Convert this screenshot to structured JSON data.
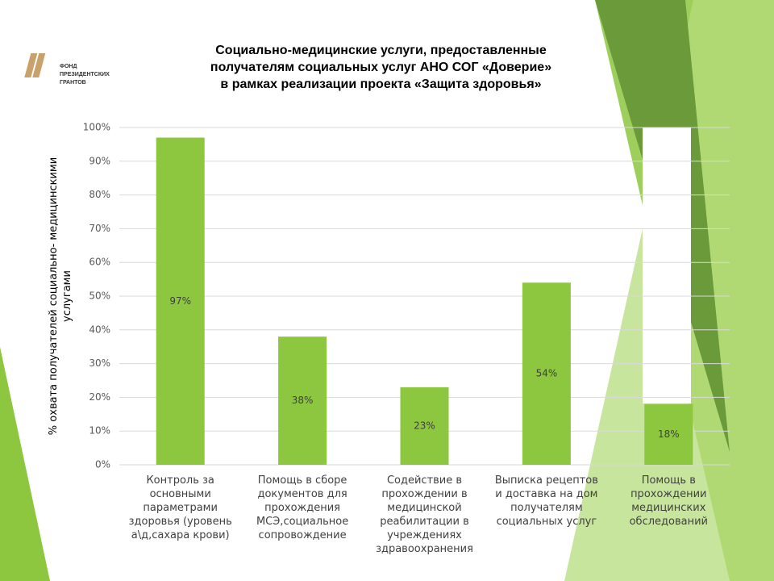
{
  "logo": {
    "text": "ФОНД ПРЕЗИДЕНТСКИХ ГРАНТОВ"
  },
  "chart_data": {
    "type": "bar",
    "title": [
      "Социально-медицинские услуги, предоставленные",
      "получателям социальных услуг АНО СОГ «Доверие»",
      "в рамках реализации проекта «Защита здоровья»"
    ],
    "y_label": "% охвата получателей социально- медицинскими услугами",
    "categories": [
      "Контроль за основными параметрами здоровья (уровень а\\д,сахара крови)",
      "Помощь в сборе документов для прохождения МСЭ,социальное сопровождение",
      "Содействие в прохождении в медицинской реабилитации в учреждениях здравоохранения",
      "Выписка рецептов и доставка на дом получателям социальных услуг",
      "Помощь в прохождении медицинских обследований"
    ],
    "values": [
      97,
      38,
      23,
      54,
      18
    ],
    "value_labels": [
      "97%",
      "38%",
      "23%",
      "54%",
      "18%"
    ],
    "color": "#8dc63f",
    "ylim": [
      0,
      100
    ],
    "yticks": [
      {
        "value": 0,
        "label": "0%"
      },
      {
        "value": 10,
        "label": "10%"
      },
      {
        "value": 20,
        "label": "20%"
      },
      {
        "value": 30,
        "label": "30%"
      },
      {
        "value": 40,
        "label": "40%"
      },
      {
        "value": 50,
        "label": "50%"
      },
      {
        "value": 60,
        "label": "60%"
      },
      {
        "value": 70,
        "label": "70%"
      },
      {
        "value": 80,
        "label": "80%"
      },
      {
        "value": 90,
        "label": "90%"
      },
      {
        "value": 100,
        "label": "100%"
      }
    ],
    "grid": true
  }
}
